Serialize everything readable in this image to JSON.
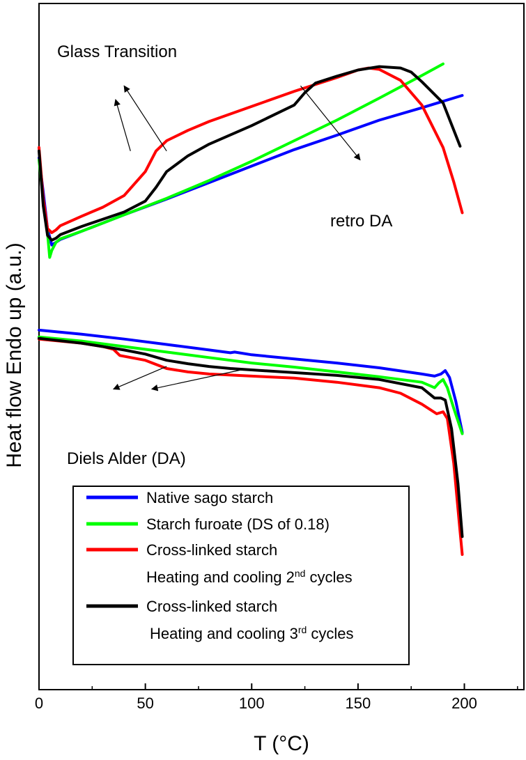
{
  "chart_data": {
    "type": "line",
    "title": "",
    "xlabel": "T (°C)",
    "ylabel": "Heat flow Endo up (a.u.)",
    "xlim": [
      0,
      228
    ],
    "ylim": [
      0,
      1
    ],
    "xticks": [
      0,
      50,
      100,
      150,
      200
    ],
    "grid": false,
    "legend_position": "bottom-center",
    "series": [
      {
        "name": "Native sago starch",
        "legend_label": "Native sago starch",
        "color": "#0000ff",
        "heating": {
          "x": [
            0,
            2,
            4,
            6,
            8,
            10,
            20,
            40,
            60,
            80,
            100,
            120,
            140,
            160,
            180,
            199
          ],
          "y": [
            0.775,
            0.725,
            0.672,
            0.648,
            0.652,
            0.656,
            0.668,
            0.692,
            0.715,
            0.739,
            0.763,
            0.787,
            0.808,
            0.83,
            0.848,
            0.866
          ]
        },
        "cooling": {
          "x": [
            0,
            20,
            40,
            60,
            80,
            90,
            92,
            100,
            120,
            140,
            160,
            180,
            186,
            189,
            191,
            193,
            196,
            199
          ],
          "y": [
            0.524,
            0.518,
            0.511,
            0.503,
            0.495,
            0.491,
            0.492,
            0.488,
            0.482,
            0.476,
            0.469,
            0.46,
            0.457,
            0.46,
            0.465,
            0.455,
            0.42,
            0.375
          ]
        }
      },
      {
        "name": "Starch furoate (DS of 0.18)",
        "legend_label": "Starch furoate (DS of 0.18)",
        "color": "#00ff00",
        "heating": {
          "x": [
            0,
            2,
            4,
            5,
            6,
            8,
            10,
            20,
            40,
            60,
            80,
            100,
            120,
            140,
            160,
            180,
            190
          ],
          "y": [
            0.772,
            0.715,
            0.665,
            0.63,
            0.64,
            0.652,
            0.657,
            0.668,
            0.692,
            0.716,
            0.742,
            0.77,
            0.8,
            0.83,
            0.862,
            0.895,
            0.912
          ]
        },
        "cooling": {
          "x": [
            0,
            20,
            40,
            60,
            80,
            100,
            120,
            140,
            160,
            180,
            186,
            188,
            190,
            192,
            195,
            199
          ],
          "y": [
            0.514,
            0.508,
            0.5,
            0.492,
            0.484,
            0.476,
            0.47,
            0.463,
            0.456,
            0.448,
            0.44,
            0.447,
            0.452,
            0.44,
            0.41,
            0.373
          ]
        }
      },
      {
        "name": "Cross-linked starch",
        "legend_label": "Cross-linked starch",
        "sublabel": "Heating and cooling 2",
        "sup": "nd",
        "suffix": " cycles",
        "color": "#ff0000",
        "heating": {
          "x": [
            0,
            2,
            4,
            6,
            8,
            10,
            20,
            30,
            40,
            50,
            55,
            60,
            70,
            80,
            100,
            120,
            140,
            150,
            155,
            160,
            170,
            180,
            190,
            195,
            199
          ],
          "y": [
            0.79,
            0.715,
            0.672,
            0.666,
            0.67,
            0.676,
            0.69,
            0.703,
            0.72,
            0.755,
            0.785,
            0.8,
            0.815,
            0.828,
            0.85,
            0.872,
            0.892,
            0.903,
            0.906,
            0.904,
            0.888,
            0.852,
            0.79,
            0.74,
            0.695
          ]
        },
        "cooling": {
          "x": [
            0,
            20,
            30,
            35,
            38,
            50,
            60,
            70,
            80,
            100,
            120,
            140,
            160,
            170,
            180,
            187,
            190,
            192,
            195,
            198,
            199
          ],
          "y": [
            0.511,
            0.505,
            0.5,
            0.496,
            0.487,
            0.48,
            0.468,
            0.463,
            0.46,
            0.457,
            0.454,
            0.448,
            0.44,
            0.432,
            0.416,
            0.402,
            0.405,
            0.395,
            0.33,
            0.23,
            0.197
          ]
        }
      },
      {
        "name": "Cross-linked starch",
        "legend_label": "Cross-linked starch",
        "sublabel": "Heating and cooling 3",
        "sup": "rd",
        "suffix": " cycles",
        "color": "#000000",
        "heating": {
          "x": [
            0,
            2,
            4,
            6,
            8,
            10,
            20,
            40,
            50,
            55,
            60,
            70,
            80,
            100,
            120,
            125,
            130,
            140,
            150,
            160,
            170,
            175,
            180,
            190,
            198
          ],
          "y": [
            0.785,
            0.705,
            0.662,
            0.655,
            0.658,
            0.663,
            0.675,
            0.696,
            0.712,
            0.732,
            0.755,
            0.778,
            0.795,
            0.822,
            0.852,
            0.87,
            0.884,
            0.894,
            0.903,
            0.908,
            0.906,
            0.9,
            0.886,
            0.855,
            0.792
          ]
        },
        "cooling": {
          "x": [
            0,
            20,
            40,
            50,
            60,
            70,
            80,
            90,
            100,
            120,
            140,
            160,
            180,
            186,
            189,
            191,
            194,
            197,
            199
          ],
          "y": [
            0.512,
            0.505,
            0.495,
            0.489,
            0.48,
            0.475,
            0.471,
            0.468,
            0.466,
            0.462,
            0.458,
            0.452,
            0.44,
            0.425,
            0.425,
            0.422,
            0.38,
            0.3,
            0.223
          ]
        }
      }
    ],
    "annotations": {
      "glass_transition": "Glass Transition",
      "retro_da": "retro DA",
      "diels_alder": "Diels Alder (DA)"
    },
    "arrows": [
      {
        "name": "glass-transition-arrow-1",
        "from": [
          43,
          0.785
        ],
        "to": [
          36,
          0.86
        ]
      },
      {
        "name": "glass-transition-arrow-2",
        "from": [
          60,
          0.785
        ],
        "to": [
          40,
          0.88
        ]
      },
      {
        "name": "retro-da-arrow",
        "from": [
          123,
          0.88
        ],
        "to": [
          151,
          0.772
        ]
      },
      {
        "name": "diels-alder-arrow-1",
        "from": [
          60,
          0.471
        ],
        "to": [
          35,
          0.438
        ]
      },
      {
        "name": "diels-alder-arrow-2",
        "from": [
          95,
          0.466
        ],
        "to": [
          53,
          0.438
        ]
      }
    ]
  }
}
